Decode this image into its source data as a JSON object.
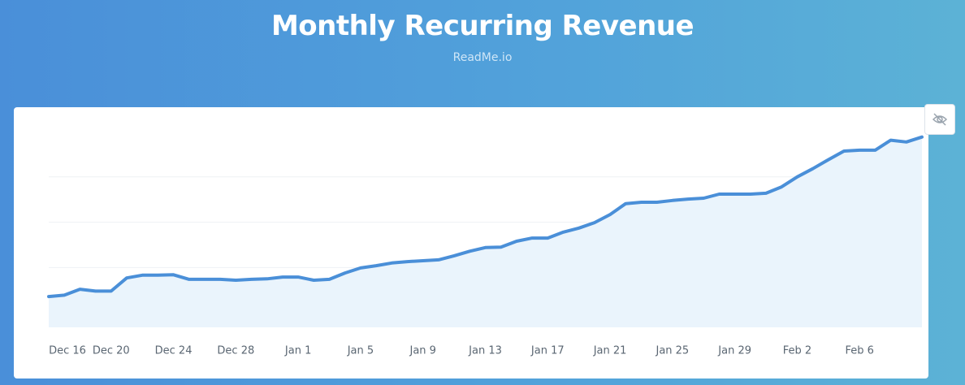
{
  "chart_data": {
    "type": "line",
    "title": "Monthly Recurring Revenue",
    "subtitle": "ReadMe.io",
    "categories": [
      "Dec 16",
      null,
      null,
      null,
      "Dec 20",
      null,
      null,
      null,
      "Dec 24",
      null,
      null,
      null,
      "Dec 28",
      null,
      null,
      null,
      "Jan 1",
      null,
      null,
      null,
      "Jan 5",
      null,
      null,
      null,
      "Jan 9",
      null,
      null,
      null,
      "Jan 13",
      null,
      null,
      null,
      "Jan 17",
      null,
      null,
      null,
      "Jan 21",
      null,
      null,
      null,
      "Jan 25",
      null,
      null,
      null,
      "Jan 29",
      null,
      null,
      null,
      "Feb 2",
      null,
      null,
      null,
      "Feb 6",
      null,
      null,
      null,
      null
    ],
    "values": [
      13.6,
      13.9,
      15.2,
      14.8,
      14.8,
      17.7,
      18.3,
      18.3,
      18.4,
      17.4,
      17.4,
      17.4,
      17.2,
      17.4,
      17.5,
      17.9,
      17.9,
      17.2,
      17.4,
      18.8,
      19.9,
      20.4,
      21.0,
      21.3,
      21.5,
      21.7,
      22.6,
      23.6,
      24.4,
      24.5,
      25.8,
      26.5,
      26.5,
      27.8,
      28.7,
      29.9,
      31.7,
      34.1,
      34.4,
      34.4,
      34.8,
      35.1,
      35.3,
      36.2,
      36.2,
      36.2,
      36.4,
      37.8,
      40.0,
      41.8,
      43.8,
      45.7,
      45.9,
      45.9,
      48.1,
      47.7,
      48.8
    ],
    "color": "#4a8fd8",
    "fill_color": "#eaf4fc",
    "ylim": [
      6.8,
      50
    ],
    "yticks": [
      10,
      20,
      30,
      40
    ],
    "grid": true
  }
}
